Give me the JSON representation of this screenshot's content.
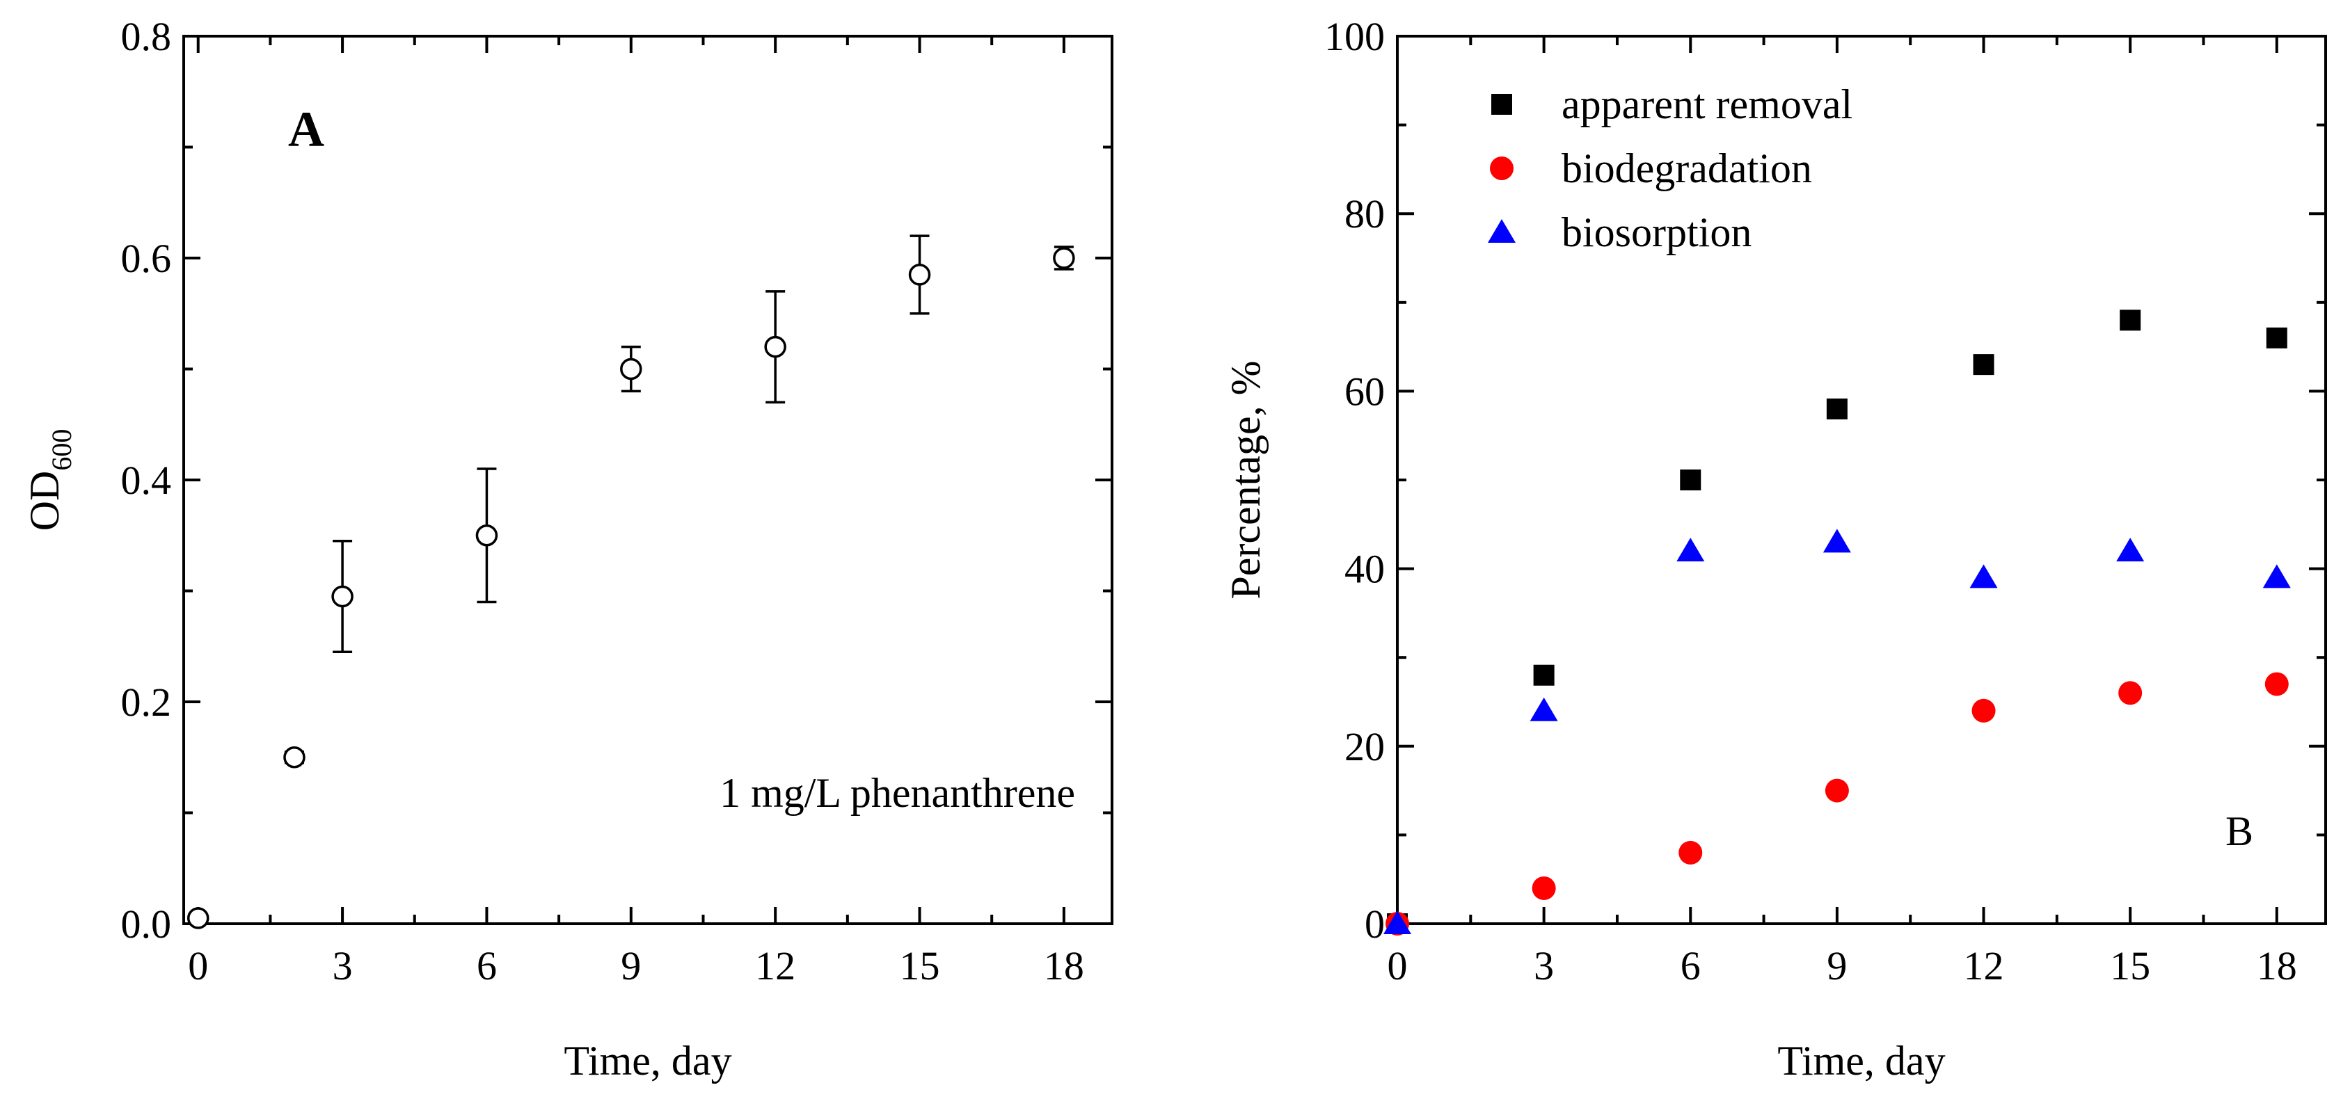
{
  "chart_data": [
    {
      "id": "A",
      "type": "scatter",
      "panel_label": "A",
      "annotation": "1 mg/L phenanthrene",
      "xlabel": "Time, day",
      "ylabel": "OD",
      "ylabel_subscript": "600",
      "xlim": [
        -0.3,
        19
      ],
      "ylim": [
        0,
        0.8
      ],
      "xticks": [
        0,
        3,
        6,
        9,
        12,
        15,
        18
      ],
      "xtick_labels": [
        "0",
        "3",
        "6",
        "9",
        "12",
        "15",
        "18"
      ],
      "yticks": [
        0.0,
        0.2,
        0.4,
        0.6,
        0.8
      ],
      "ytick_labels": [
        "0.0",
        "0.2",
        "0.4",
        "0.6",
        "0.8"
      ],
      "grid": false,
      "series": [
        {
          "name": "OD600",
          "marker": "open-circle",
          "color": "#000000",
          "x": [
            0,
            2,
            3,
            6,
            9,
            12,
            15,
            18
          ],
          "y": [
            0.005,
            0.15,
            0.295,
            0.35,
            0.5,
            0.52,
            0.585,
            0.6
          ],
          "error": [
            0.002,
            0.005,
            0.05,
            0.06,
            0.02,
            0.05,
            0.035,
            0.01
          ]
        }
      ]
    },
    {
      "id": "B",
      "type": "scatter",
      "panel_label": "B",
      "xlabel": "Time, day",
      "ylabel": "Percentage, %",
      "xlim": [
        0,
        19
      ],
      "ylim": [
        0,
        100
      ],
      "xticks": [
        0,
        3,
        6,
        9,
        12,
        15,
        18
      ],
      "xtick_labels": [
        "0",
        "3",
        "6",
        "9",
        "12",
        "15",
        "18"
      ],
      "yticks": [
        0,
        20,
        40,
        60,
        80,
        100
      ],
      "ytick_labels": [
        "0",
        "20",
        "40",
        "60",
        "80",
        "100"
      ],
      "grid": false,
      "legend_position": "top-left",
      "series": [
        {
          "name": "apparent removal",
          "marker": "square",
          "color": "#000000",
          "x": [
            0,
            3,
            6,
            9,
            12,
            15,
            18
          ],
          "y": [
            0,
            28,
            50,
            58,
            63,
            68,
            66
          ]
        },
        {
          "name": "biodegradation",
          "marker": "circle",
          "color": "#ff0000",
          "x": [
            0,
            3,
            6,
            9,
            12,
            15,
            18
          ],
          "y": [
            0,
            4,
            8,
            15,
            24,
            26,
            27
          ]
        },
        {
          "name": "biosorption",
          "marker": "triangle",
          "color": "#0000ff",
          "x": [
            0,
            3,
            6,
            9,
            12,
            15,
            18
          ],
          "y": [
            0,
            24,
            42,
            43,
            39,
            42,
            39
          ]
        }
      ]
    }
  ]
}
